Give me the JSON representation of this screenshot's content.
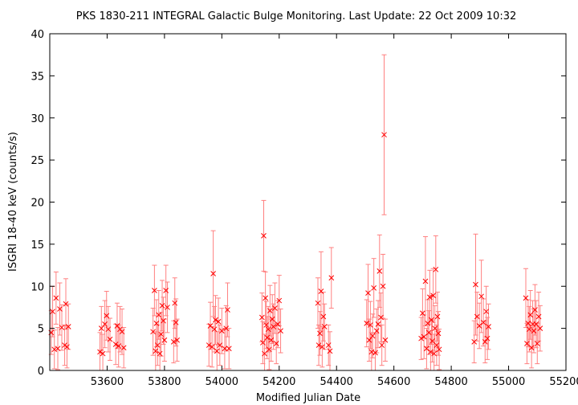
{
  "chart_data": {
    "type": "scatter",
    "title": "PKS 1830-211   INTEGRAL Galactic Bulge Monitoring.  Last Update: 22 Oct 2009 10:32",
    "xlabel": "Modified Julian Date",
    "ylabel": "ISGRI 18-40 keV (counts/s)",
    "xlim": [
      53400,
      55200
    ],
    "ylim": [
      0,
      40
    ],
    "x_ticks": [
      53600,
      53800,
      54000,
      54200,
      54400,
      54600,
      54800,
      55000,
      55200
    ],
    "y_ticks": [
      0,
      5,
      10,
      15,
      20,
      25,
      30,
      35,
      40
    ],
    "grid": false,
    "legend": "none",
    "marker": "x",
    "error_bars": true,
    "colors": {
      "series": "#ff0000",
      "errorbar": "#ff8080",
      "axes": "#000000"
    },
    "points": [
      {
        "x": 53405,
        "y": 4.5,
        "err": 2.6
      },
      {
        "x": 53410,
        "y": 7.0,
        "err": 3.0
      },
      {
        "x": 53416,
        "y": 2.5,
        "err": 2.3
      },
      {
        "x": 53422,
        "y": 8.6,
        "err": 3.1
      },
      {
        "x": 53428,
        "y": 2.6,
        "err": 2.5
      },
      {
        "x": 53435,
        "y": 7.3,
        "err": 3.1
      },
      {
        "x": 53442,
        "y": 5.1,
        "err": 2.7
      },
      {
        "x": 53452,
        "y": 3.0,
        "err": 2.4
      },
      {
        "x": 53456,
        "y": 7.9,
        "err": 3.0
      },
      {
        "x": 53460,
        "y": 2.8,
        "err": 2.5
      },
      {
        "x": 53465,
        "y": 5.2,
        "err": 2.7
      },
      {
        "x": 53575,
        "y": 2.2,
        "err": 2.3
      },
      {
        "x": 53580,
        "y": 5.0,
        "err": 2.6
      },
      {
        "x": 53585,
        "y": 2.0,
        "err": 2.3
      },
      {
        "x": 53592,
        "y": 5.5,
        "err": 2.8
      },
      {
        "x": 53598,
        "y": 6.5,
        "err": 2.9
      },
      {
        "x": 53604,
        "y": 4.9,
        "err": 2.7
      },
      {
        "x": 53610,
        "y": 3.7,
        "err": 2.5
      },
      {
        "x": 53630,
        "y": 3.1,
        "err": 2.4
      },
      {
        "x": 53635,
        "y": 5.3,
        "err": 2.7
      },
      {
        "x": 53640,
        "y": 2.9,
        "err": 2.5
      },
      {
        "x": 53645,
        "y": 4.9,
        "err": 2.7
      },
      {
        "x": 53652,
        "y": 4.6,
        "err": 2.7
      },
      {
        "x": 53658,
        "y": 2.7,
        "err": 2.4
      },
      {
        "x": 53760,
        "y": 4.6,
        "err": 2.8
      },
      {
        "x": 53765,
        "y": 9.5,
        "err": 3.0
      },
      {
        "x": 53769,
        "y": 2.3,
        "err": 2.3
      },
      {
        "x": 53772,
        "y": 5.6,
        "err": 2.8
      },
      {
        "x": 53776,
        "y": 3.0,
        "err": 2.4
      },
      {
        "x": 53780,
        "y": 6.6,
        "err": 2.9
      },
      {
        "x": 53784,
        "y": 2.0,
        "err": 2.3
      },
      {
        "x": 53788,
        "y": 4.3,
        "err": 2.6
      },
      {
        "x": 53792,
        "y": 7.7,
        "err": 3.0
      },
      {
        "x": 53796,
        "y": 5.9,
        "err": 2.8
      },
      {
        "x": 53800,
        "y": 3.6,
        "err": 2.5
      },
      {
        "x": 53805,
        "y": 9.5,
        "err": 3.0
      },
      {
        "x": 53810,
        "y": 7.5,
        "err": 3.0
      },
      {
        "x": 53832,
        "y": 3.4,
        "err": 2.5
      },
      {
        "x": 53836,
        "y": 8.0,
        "err": 3.0
      },
      {
        "x": 53840,
        "y": 5.7,
        "err": 2.8
      },
      {
        "x": 53844,
        "y": 3.6,
        "err": 2.5
      },
      {
        "x": 53955,
        "y": 3.0,
        "err": 2.5
      },
      {
        "x": 53960,
        "y": 5.3,
        "err": 2.8
      },
      {
        "x": 53966,
        "y": 2.8,
        "err": 2.4
      },
      {
        "x": 53970,
        "y": 11.5,
        "err": 5.1
      },
      {
        "x": 53974,
        "y": 4.9,
        "err": 2.7
      },
      {
        "x": 53978,
        "y": 6.0,
        "err": 2.9
      },
      {
        "x": 53983,
        "y": 2.3,
        "err": 2.3
      },
      {
        "x": 53988,
        "y": 5.8,
        "err": 2.8
      },
      {
        "x": 53993,
        "y": 3.0,
        "err": 2.4
      },
      {
        "x": 54000,
        "y": 4.7,
        "err": 2.7
      },
      {
        "x": 54010,
        "y": 2.6,
        "err": 2.4
      },
      {
        "x": 54015,
        "y": 5.0,
        "err": 2.7
      },
      {
        "x": 54020,
        "y": 7.2,
        "err": 3.2
      },
      {
        "x": 54025,
        "y": 2.6,
        "err": 2.4
      },
      {
        "x": 54140,
        "y": 6.3,
        "err": 2.9
      },
      {
        "x": 54143,
        "y": 3.3,
        "err": 2.5
      },
      {
        "x": 54146,
        "y": 16.0,
        "err": 4.2
      },
      {
        "x": 54149,
        "y": 2.0,
        "err": 2.3
      },
      {
        "x": 54152,
        "y": 8.6,
        "err": 3.1
      },
      {
        "x": 54155,
        "y": 5.4,
        "err": 2.8
      },
      {
        "x": 54158,
        "y": 3.9,
        "err": 2.5
      },
      {
        "x": 54162,
        "y": 4.9,
        "err": 2.7
      },
      {
        "x": 54165,
        "y": 2.5,
        "err": 2.4
      },
      {
        "x": 54168,
        "y": 7.1,
        "err": 3.0
      },
      {
        "x": 54172,
        "y": 3.6,
        "err": 2.5
      },
      {
        "x": 54176,
        "y": 6.1,
        "err": 2.9
      },
      {
        "x": 54180,
        "y": 5.2,
        "err": 2.7
      },
      {
        "x": 54185,
        "y": 7.4,
        "err": 3.0
      },
      {
        "x": 54190,
        "y": 3.2,
        "err": 2.4
      },
      {
        "x": 54195,
        "y": 5.5,
        "err": 2.8
      },
      {
        "x": 54200,
        "y": 8.3,
        "err": 3.0
      },
      {
        "x": 54205,
        "y": 4.7,
        "err": 2.6
      },
      {
        "x": 54335,
        "y": 8.0,
        "err": 3.0
      },
      {
        "x": 54338,
        "y": 3.0,
        "err": 2.4
      },
      {
        "x": 54342,
        "y": 4.4,
        "err": 2.6
      },
      {
        "x": 54346,
        "y": 9.4,
        "err": 4.7
      },
      {
        "x": 54350,
        "y": 2.8,
        "err": 2.4
      },
      {
        "x": 54354,
        "y": 6.4,
        "err": 2.9
      },
      {
        "x": 54358,
        "y": 5.2,
        "err": 2.7
      },
      {
        "x": 54372,
        "y": 3.0,
        "err": 2.4
      },
      {
        "x": 54377,
        "y": 2.3,
        "err": 2.3
      },
      {
        "x": 54382,
        "y": 11.0,
        "err": 3.6
      },
      {
        "x": 54505,
        "y": 5.6,
        "err": 2.8
      },
      {
        "x": 54510,
        "y": 9.2,
        "err": 3.4
      },
      {
        "x": 54514,
        "y": 3.6,
        "err": 2.5
      },
      {
        "x": 54518,
        "y": 5.4,
        "err": 2.8
      },
      {
        "x": 54522,
        "y": 2.2,
        "err": 2.3
      },
      {
        "x": 54526,
        "y": 4.1,
        "err": 2.6
      },
      {
        "x": 54530,
        "y": 9.8,
        "err": 3.5
      },
      {
        "x": 54535,
        "y": 2.1,
        "err": 2.3
      },
      {
        "x": 54540,
        "y": 4.7,
        "err": 2.6
      },
      {
        "x": 54545,
        "y": 5.5,
        "err": 2.8
      },
      {
        "x": 54550,
        "y": 11.8,
        "err": 4.3
      },
      {
        "x": 54555,
        "y": 6.3,
        "err": 2.9
      },
      {
        "x": 54558,
        "y": 3.0,
        "err": 2.4
      },
      {
        "x": 54562,
        "y": 10.0,
        "err": 3.8
      },
      {
        "x": 54566,
        "y": 28.0,
        "err": 9.5
      },
      {
        "x": 54570,
        "y": 3.6,
        "err": 2.5
      },
      {
        "x": 54695,
        "y": 3.8,
        "err": 2.5
      },
      {
        "x": 54700,
        "y": 6.8,
        "err": 2.9
      },
      {
        "x": 54705,
        "y": 4.0,
        "err": 2.6
      },
      {
        "x": 54710,
        "y": 10.6,
        "err": 5.3
      },
      {
        "x": 54714,
        "y": 2.6,
        "err": 2.4
      },
      {
        "x": 54718,
        "y": 5.6,
        "err": 2.8
      },
      {
        "x": 54722,
        "y": 4.5,
        "err": 2.6
      },
      {
        "x": 54725,
        "y": 8.7,
        "err": 3.2
      },
      {
        "x": 54728,
        "y": 2.2,
        "err": 2.3
      },
      {
        "x": 54731,
        "y": 6.0,
        "err": 2.9
      },
      {
        "x": 54734,
        "y": 3.5,
        "err": 2.5
      },
      {
        "x": 54737,
        "y": 8.9,
        "err": 3.2
      },
      {
        "x": 54740,
        "y": 2.0,
        "err": 2.3
      },
      {
        "x": 54743,
        "y": 5.0,
        "err": 2.7
      },
      {
        "x": 54746,
        "y": 12.0,
        "err": 4.0
      },
      {
        "x": 54749,
        "y": 3.0,
        "err": 2.4
      },
      {
        "x": 54752,
        "y": 6.4,
        "err": 2.9
      },
      {
        "x": 54755,
        "y": 4.4,
        "err": 2.6
      },
      {
        "x": 54758,
        "y": 2.5,
        "err": 2.4
      },
      {
        "x": 54880,
        "y": 3.4,
        "err": 2.5
      },
      {
        "x": 54885,
        "y": 10.2,
        "err": 6.0
      },
      {
        "x": 54890,
        "y": 6.4,
        "err": 2.9
      },
      {
        "x": 54898,
        "y": 5.3,
        "err": 2.7
      },
      {
        "x": 54905,
        "y": 8.8,
        "err": 4.3
      },
      {
        "x": 54912,
        "y": 5.7,
        "err": 2.8
      },
      {
        "x": 54918,
        "y": 3.4,
        "err": 2.5
      },
      {
        "x": 54922,
        "y": 7.0,
        "err": 3.0
      },
      {
        "x": 54926,
        "y": 3.8,
        "err": 2.5
      },
      {
        "x": 54930,
        "y": 5.2,
        "err": 2.7
      },
      {
        "x": 55060,
        "y": 8.6,
        "err": 3.5
      },
      {
        "x": 55064,
        "y": 3.2,
        "err": 2.4
      },
      {
        "x": 55068,
        "y": 5.6,
        "err": 2.8
      },
      {
        "x": 55072,
        "y": 4.9,
        "err": 2.7
      },
      {
        "x": 55076,
        "y": 6.6,
        "err": 2.9
      },
      {
        "x": 55080,
        "y": 2.7,
        "err": 2.4
      },
      {
        "x": 55084,
        "y": 5.5,
        "err": 2.8
      },
      {
        "x": 55088,
        "y": 4.7,
        "err": 2.6
      },
      {
        "x": 55092,
        "y": 7.2,
        "err": 3.0
      },
      {
        "x": 55096,
        "y": 5.5,
        "err": 2.8
      },
      {
        "x": 55100,
        "y": 3.2,
        "err": 2.4
      },
      {
        "x": 55105,
        "y": 6.4,
        "err": 2.9
      },
      {
        "x": 55110,
        "y": 5.0,
        "err": 2.7
      }
    ]
  }
}
